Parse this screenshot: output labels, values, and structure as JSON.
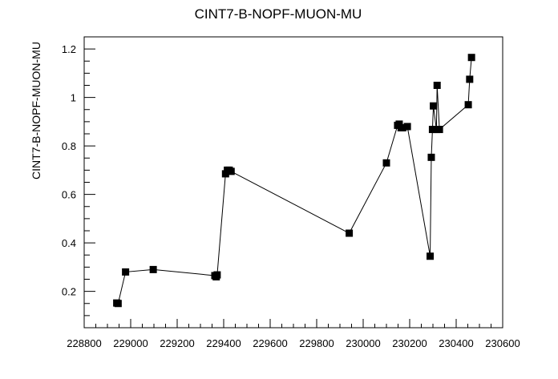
{
  "chart_data": {
    "type": "line",
    "title": "CINT7-B-NOPF-MUON-MU",
    "xlabel": "",
    "ylabel": "CINT7-B-NOPF-MUON-MU",
    "xlim": [
      228800,
      230600
    ],
    "ylim": [
      0.05,
      1.25
    ],
    "x_ticks": [
      228800,
      229000,
      229200,
      229400,
      229600,
      229800,
      230000,
      230200,
      230400,
      230600
    ],
    "y_ticks": [
      0.2,
      0.4,
      0.6,
      0.8,
      1,
      1.2
    ],
    "x_tick_labels": [
      "228800",
      "229000",
      "229200",
      "229400",
      "229600",
      "229800",
      "230000",
      "230200",
      "230400",
      "230600"
    ],
    "y_tick_labels": [
      "0.2",
      "0.4",
      "0.6",
      "0.8",
      "1",
      "1.2"
    ],
    "grid": false,
    "marker": "square",
    "color": "#000000",
    "series": [
      {
        "x": [
          228940,
          228946,
          228978,
          229097,
          229362,
          229368,
          229372,
          229408,
          229416,
          229424,
          229432,
          229940,
          230100,
          230148,
          230155,
          230163,
          230170,
          230190,
          230288,
          230293,
          230298,
          230302,
          230315,
          230318,
          230328,
          230452,
          230458,
          230466
        ],
        "y": [
          0.152,
          0.15,
          0.28,
          0.29,
          0.265,
          0.26,
          0.268,
          0.685,
          0.7,
          0.7,
          0.695,
          0.44,
          0.73,
          0.885,
          0.89,
          0.875,
          0.875,
          0.88,
          0.345,
          0.753,
          0.868,
          0.965,
          0.868,
          1.05,
          0.868,
          0.97,
          1.075,
          1.165
        ]
      }
    ]
  }
}
